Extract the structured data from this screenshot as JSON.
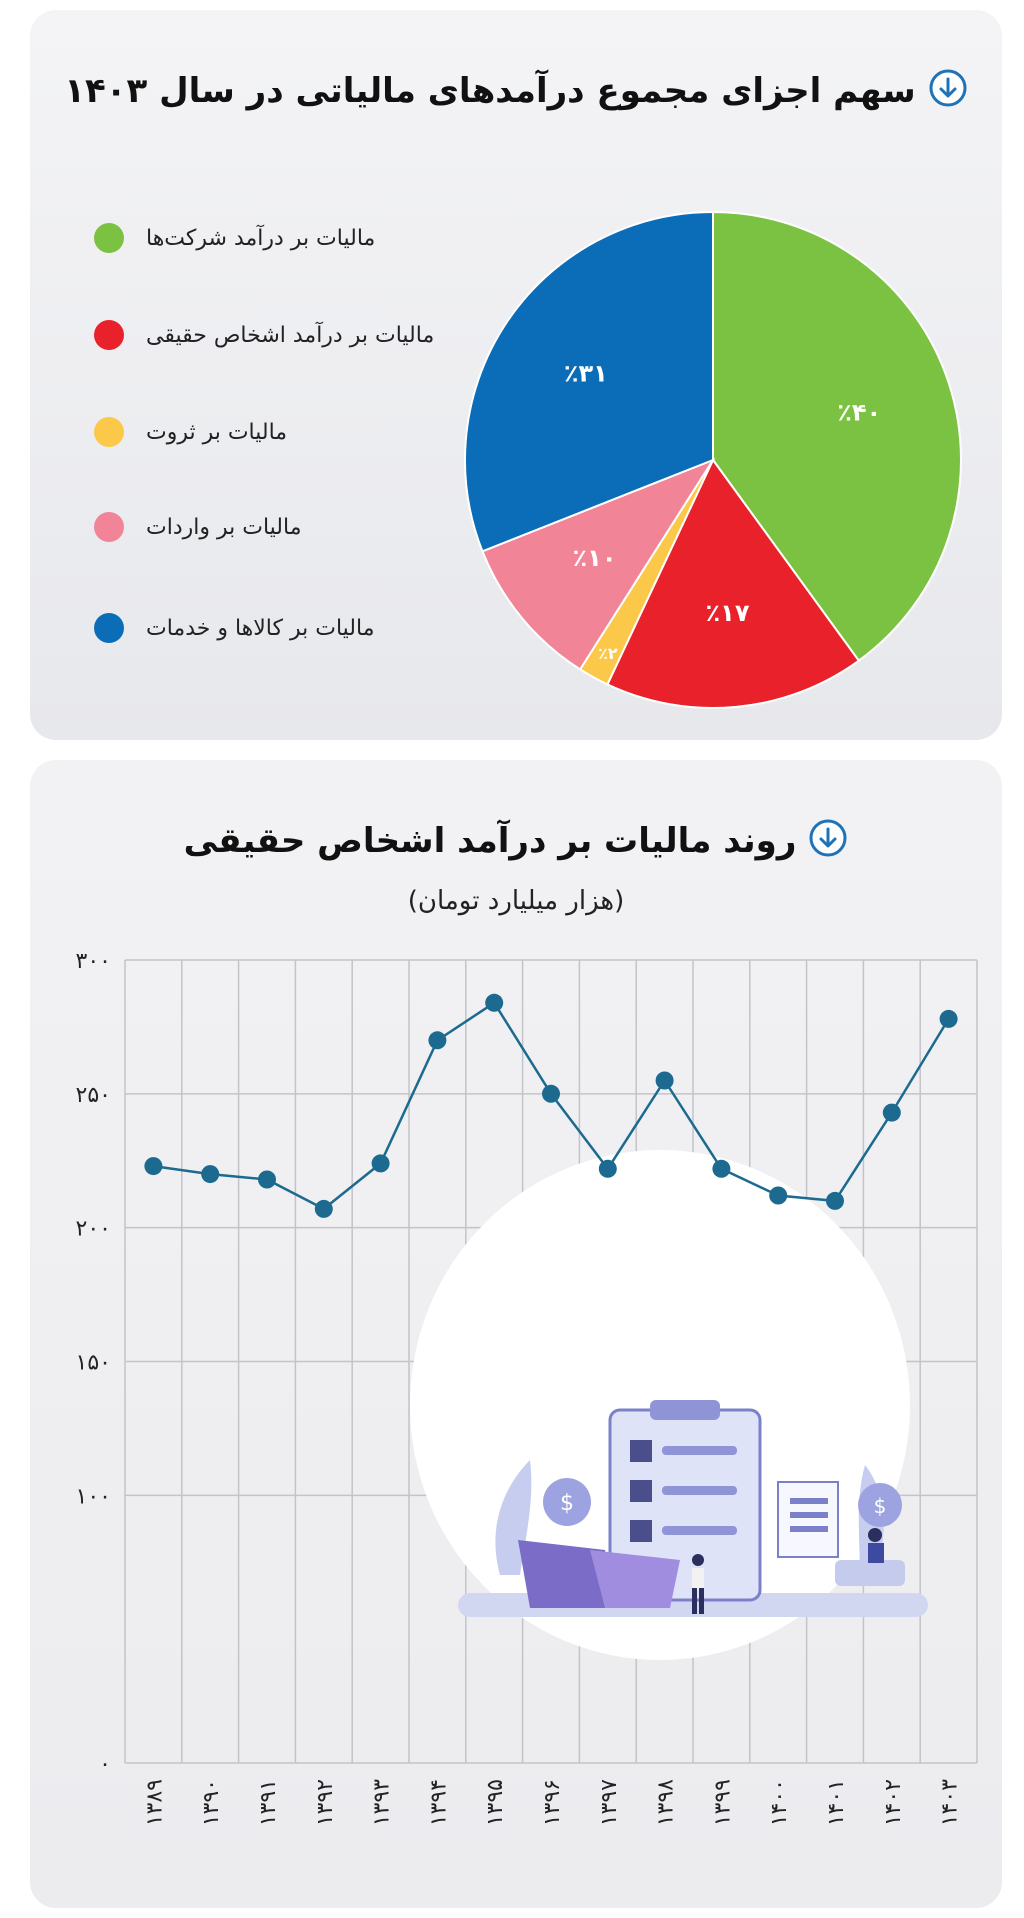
{
  "charts": {
    "pie": {
      "title": "سهم اجزای مجموع درآمدهای مالیاتی در سال ۱۴۰۳",
      "colors": {
        "green": "#7cc242",
        "red": "#e8212b",
        "yellow": "#fcc849",
        "pink": "#f18597",
        "blue": "#0b6db8"
      }
    },
    "line": {
      "title": "روند مالیات بر درآمد اشخاص حقیقی",
      "subtitle": "(هزار میلیارد تومان)",
      "color": "#1c6a8f"
    }
  },
  "chart_data": [
    {
      "type": "pie",
      "title": "سهم اجزای مجموع درآمدهای مالیاتی در سال ۱۴۰۳",
      "slices": [
        {
          "label": "مالیات بر درآمد شرکت‌ها",
          "value": 40,
          "value_label": "٪۴۰",
          "color": "#7cc242"
        },
        {
          "label": "مالیات بر درآمد اشخاص حقیقی",
          "value": 17,
          "value_label": "٪۱۷",
          "color": "#e8212b"
        },
        {
          "label": "مالیات بر ثروت",
          "value": 2,
          "value_label": "٪۲",
          "color": "#fcc849"
        },
        {
          "label": "مالیات بر واردات",
          "value": 10,
          "value_label": "٪۱۰",
          "color": "#f18597"
        },
        {
          "label": "مالیات بر کالاها و خدمات",
          "value": 31,
          "value_label": "٪۳۱",
          "color": "#0b6db8"
        }
      ],
      "legend": "left"
    },
    {
      "type": "line",
      "title": "روند مالیات بر درآمد اشخاص حقیقی",
      "ylabel": "(هزار میلیارد تومان)",
      "categories": [
        "۱۳۸۹",
        "۱۳۹۰",
        "۱۳۹۱",
        "۱۳۹۲",
        "۱۳۹۳",
        "۱۳۹۴",
        "۱۳۹۵",
        "۱۳۹۶",
        "۱۳۹۷",
        "۱۳۹۸",
        "۱۳۹۹",
        "۱۴۰۰",
        "۱۴۰۱",
        "۱۴۰۲",
        "۱۴۰۳"
      ],
      "values": [
        223,
        220,
        218,
        207,
        224,
        270,
        284,
        250,
        222,
        255,
        222,
        212,
        210,
        243,
        278
      ],
      "ylim": [
        0,
        300
      ],
      "yticks": [
        0,
        100,
        150,
        200,
        250,
        300
      ],
      "ytick_labels": [
        "۰",
        "۱۰۰",
        "۱۵۰",
        "۲۰۰",
        "۲۵۰",
        "۳۰۰"
      ],
      "grid": true
    }
  ]
}
